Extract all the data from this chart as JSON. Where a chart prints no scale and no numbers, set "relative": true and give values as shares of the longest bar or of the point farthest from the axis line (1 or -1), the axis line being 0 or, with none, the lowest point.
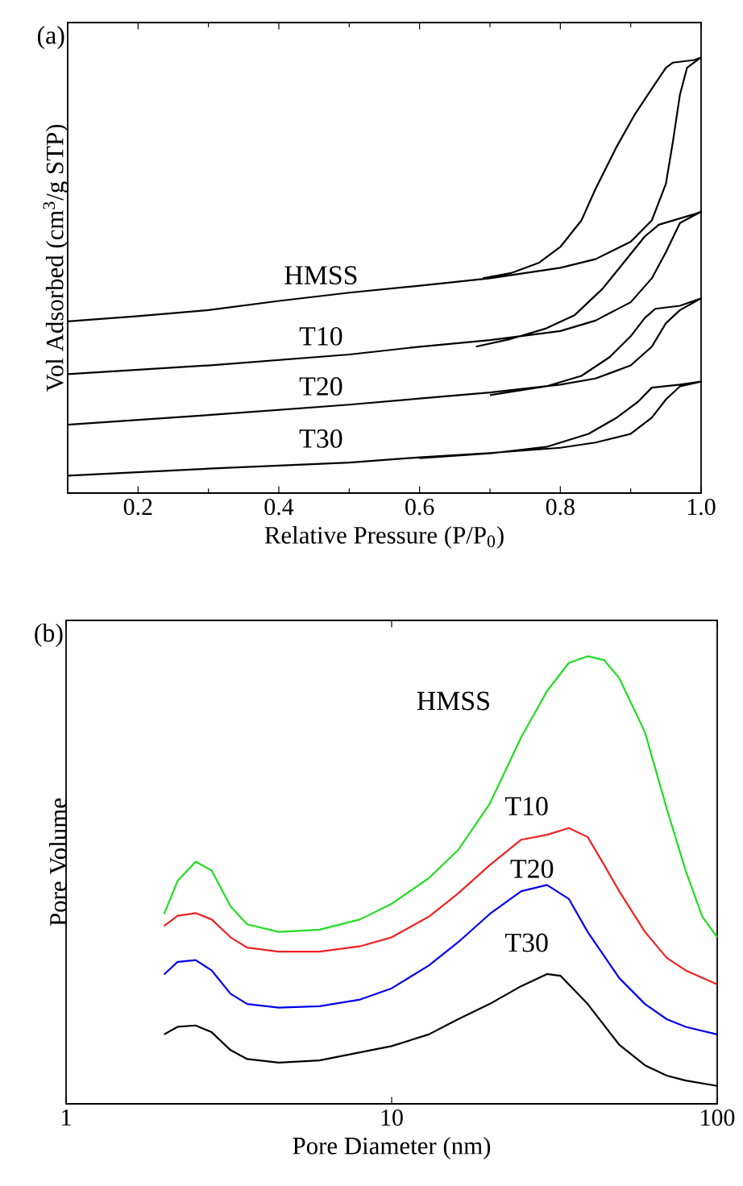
{
  "chart_data": [
    {
      "type": "line",
      "annotations": [
        "(a)"
      ],
      "xlabel": "Relative Pressure (P/P$_{0}$)",
      "ylabel": "Vol Adsorbed (cm$^{3}$/g STP)",
      "relative": true,
      "tick_labels": "x",
      "xlim": [
        0.1,
        1.0
      ],
      "xticks": [
        {
          "value": 0.2,
          "label": "0.2"
        },
        {
          "value": 0.4,
          "label": "0.4"
        },
        {
          "value": 0.6,
          "label": "0.6"
        },
        {
          "value": 0.8,
          "label": "0.8"
        },
        {
          "value": 1.0,
          "label": "1.0"
        }
      ],
      "series": [
        {
          "name": "HMSS",
          "color": "#000000",
          "x": [
            0.1,
            0.2,
            0.3,
            0.4,
            0.5,
            0.6,
            0.7,
            0.8,
            0.85,
            0.9,
            0.93,
            0.95,
            0.96,
            0.97,
            0.98,
            1.0,
            0.99,
            0.96,
            0.95,
            0.93,
            0.905,
            0.88,
            0.85,
            0.83,
            0.8,
            0.77,
            0.73,
            0.69
          ],
          "values": [
            0.394,
            0.406,
            0.42,
            0.441,
            0.46,
            0.476,
            0.493,
            0.517,
            0.537,
            0.577,
            0.626,
            0.71,
            0.807,
            0.915,
            0.976,
            1.0,
            0.994,
            0.988,
            0.976,
            0.928,
            0.867,
            0.795,
            0.698,
            0.626,
            0.565,
            0.529,
            0.505,
            0.493
          ]
        },
        {
          "name": "T10",
          "color": "#000000",
          "x": [
            0.1,
            0.3,
            0.5,
            0.6,
            0.7,
            0.8,
            0.85,
            0.9,
            0.93,
            0.95,
            0.97,
            1.0,
            0.99,
            0.94,
            0.92,
            0.89,
            0.86,
            0.82,
            0.78,
            0.73,
            0.68
          ],
          "values": [
            0.273,
            0.293,
            0.318,
            0.336,
            0.351,
            0.372,
            0.396,
            0.438,
            0.493,
            0.553,
            0.62,
            0.646,
            0.64,
            0.616,
            0.589,
            0.529,
            0.469,
            0.408,
            0.378,
            0.354,
            0.336
          ]
        },
        {
          "name": "T20",
          "color": "#000000",
          "x": [
            0.1,
            0.3,
            0.5,
            0.6,
            0.7,
            0.8,
            0.85,
            0.9,
            0.93,
            0.95,
            0.97,
            1.0,
            0.97,
            0.935,
            0.92,
            0.9,
            0.87,
            0.83,
            0.78,
            0.7
          ],
          "values": [
            0.157,
            0.179,
            0.203,
            0.217,
            0.231,
            0.249,
            0.263,
            0.293,
            0.336,
            0.39,
            0.42,
            0.447,
            0.43,
            0.423,
            0.402,
            0.36,
            0.312,
            0.269,
            0.245,
            0.225
          ]
        },
        {
          "name": "T30",
          "color": "#000000",
          "x": [
            0.1,
            0.3,
            0.5,
            0.6,
            0.7,
            0.8,
            0.85,
            0.9,
            0.93,
            0.95,
            0.97,
            1.0,
            0.97,
            0.93,
            0.91,
            0.88,
            0.84,
            0.78,
            0.7,
            0.6
          ],
          "values": [
            0.04,
            0.056,
            0.07,
            0.082,
            0.092,
            0.104,
            0.116,
            0.136,
            0.173,
            0.215,
            0.245,
            0.256,
            0.249,
            0.242,
            0.209,
            0.173,
            0.136,
            0.106,
            0.091,
            0.08
          ]
        }
      ]
    },
    {
      "type": "line",
      "annotations": [
        "(b)"
      ],
      "xlabel": "Pore Diameter (nm)",
      "ylabel": "Pore Volume",
      "relative": true,
      "tick_labels": "x",
      "log": "x",
      "xlim": [
        1,
        100
      ],
      "xticks": [
        1,
        10,
        100
      ],
      "series": [
        {
          "name": "HMSS",
          "color": "#22dd22",
          "x": [
            2,
            2.2,
            2.5,
            2.8,
            3.2,
            3.6,
            4.5,
            6,
            8,
            10,
            13,
            16,
            20,
            25,
            30,
            35,
            40,
            45,
            50,
            60,
            70,
            80,
            90,
            100
          ],
          "values": [
            0.424,
            0.498,
            0.541,
            0.521,
            0.441,
            0.401,
            0.384,
            0.389,
            0.412,
            0.447,
            0.504,
            0.567,
            0.67,
            0.819,
            0.922,
            0.985,
            1.0,
            0.991,
            0.951,
            0.83,
            0.659,
            0.521,
            0.418,
            0.372
          ]
        },
        {
          "name": "T10",
          "color": "#ee2222",
          "x": [
            2,
            2.2,
            2.5,
            2.8,
            3.2,
            3.6,
            4.5,
            6,
            8,
            10,
            13,
            16,
            20,
            25,
            30,
            35,
            40,
            45,
            50,
            60,
            70,
            80,
            100
          ],
          "values": [
            0.397,
            0.42,
            0.426,
            0.412,
            0.372,
            0.349,
            0.34,
            0.34,
            0.352,
            0.372,
            0.418,
            0.47,
            0.533,
            0.59,
            0.601,
            0.616,
            0.596,
            0.533,
            0.475,
            0.384,
            0.326,
            0.298,
            0.267
          ]
        },
        {
          "name": "T20",
          "color": "#0000ee",
          "x": [
            2,
            2.2,
            2.5,
            2.8,
            3.2,
            3.6,
            4.5,
            6,
            8,
            10,
            13,
            16,
            20,
            25,
            30,
            35,
            40,
            50,
            60,
            70,
            80,
            100
          ],
          "values": [
            0.289,
            0.317,
            0.321,
            0.298,
            0.246,
            0.223,
            0.215,
            0.218,
            0.233,
            0.258,
            0.309,
            0.361,
            0.424,
            0.475,
            0.489,
            0.458,
            0.384,
            0.281,
            0.223,
            0.189,
            0.172,
            0.155
          ]
        },
        {
          "name": "T30",
          "color": "#000000",
          "x": [
            2,
            2.2,
            2.5,
            2.8,
            3.2,
            3.6,
            4.5,
            6,
            8,
            10,
            13,
            16,
            20,
            25,
            30,
            33,
            40,
            50,
            60,
            70,
            80,
            100
          ],
          "values": [
            0.155,
            0.172,
            0.175,
            0.16,
            0.12,
            0.1,
            0.092,
            0.097,
            0.115,
            0.129,
            0.155,
            0.189,
            0.223,
            0.263,
            0.29,
            0.286,
            0.223,
            0.132,
            0.086,
            0.063,
            0.052,
            0.04
          ]
        }
      ]
    }
  ]
}
